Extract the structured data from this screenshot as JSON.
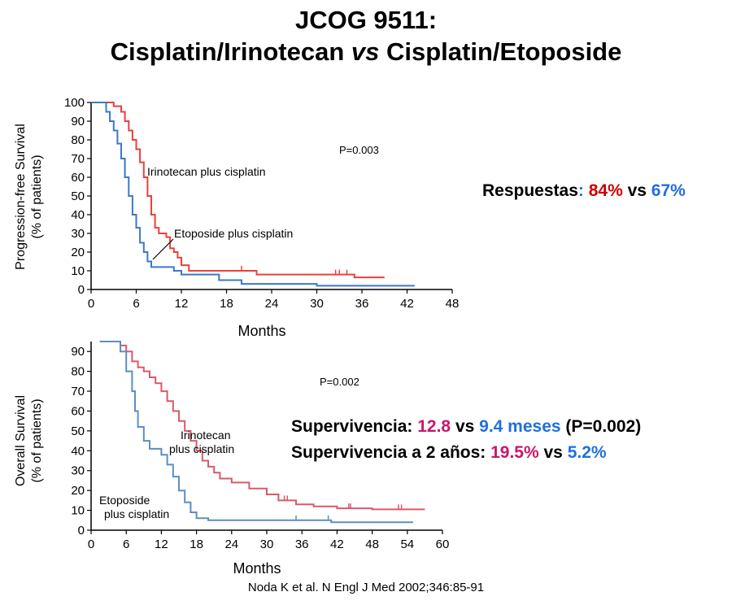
{
  "title": {
    "line1": "JCOG 9511:",
    "line2_a": "Cisplatin/Irinotecan ",
    "line2_vs": "vs",
    "line2_b": " Cisplatin/Etoposide"
  },
  "colors": {
    "irinotecan_pfs": "#e8423a",
    "etoposide_pfs": "#3c78c8",
    "irinotecan_os": "#d9596a",
    "etoposide_os": "#5b8ec4",
    "red_text": "#cc0000",
    "blue_text": "#1f6fe0",
    "magenta_text": "#c8176a"
  },
  "callouts": {
    "respuestas": {
      "label": "Respuestas",
      "colon": ": ",
      "irinotecan": "84%",
      "vs": " vs ",
      "etoposide": "67%"
    },
    "supervivencia": {
      "label": "Supervivencia: ",
      "irinotecan": "12.8",
      "vs": " vs ",
      "etoposide": "9.4 meses",
      "pvalue": " (P=0.002)"
    },
    "supervivencia_2y": {
      "label": "Supervivencia a 2 años: ",
      "irinotecan": "19.5%",
      "vs": " vs ",
      "etoposide": "5.2%"
    }
  },
  "citation": "Noda K et al. N Engl J Med 2002;346:85-91",
  "chart_data": [
    {
      "type": "line",
      "step": true,
      "ylabel": "Progression-free Survival",
      "ylabel2": "(% of patients)",
      "xlabel": "Months",
      "xlim": [
        0,
        48
      ],
      "ylim": [
        0,
        100
      ],
      "xticks": [
        0,
        6,
        12,
        18,
        24,
        30,
        36,
        42,
        48
      ],
      "yticks": [
        0,
        10,
        20,
        30,
        40,
        50,
        60,
        70,
        80,
        90,
        100
      ],
      "pvalue": "P=0.003",
      "series": [
        {
          "name": "Irinotecan plus cisplatin",
          "color_key": "irinotecan_pfs",
          "points": [
            [
              0,
              100
            ],
            [
              2.5,
              100
            ],
            [
              3,
              98
            ],
            [
              4,
              95
            ],
            [
              4.5,
              90
            ],
            [
              5,
              85
            ],
            [
              5.5,
              80
            ],
            [
              6,
              75
            ],
            [
              6.5,
              68
            ],
            [
              7,
              60
            ],
            [
              7.5,
              50
            ],
            [
              8,
              40
            ],
            [
              8.5,
              33
            ],
            [
              9,
              30
            ],
            [
              10,
              28
            ],
            [
              10.5,
              22
            ],
            [
              11,
              20
            ],
            [
              11.5,
              17
            ],
            [
              12,
              13
            ],
            [
              13,
              10
            ],
            [
              16,
              10
            ],
            [
              20,
              10
            ],
            [
              22,
              8
            ],
            [
              30,
              8
            ],
            [
              34,
              8
            ],
            [
              35,
              6.5
            ],
            [
              39,
              6.5
            ]
          ],
          "censor": [
            20,
            32.5,
            33,
            34
          ]
        },
        {
          "name": "Etoposide plus cisplatin",
          "color_key": "etoposide_pfs",
          "points": [
            [
              0,
              100
            ],
            [
              1.5,
              100
            ],
            [
              2,
              95
            ],
            [
              2.5,
              90
            ],
            [
              3,
              85
            ],
            [
              3.5,
              78
            ],
            [
              4,
              70
            ],
            [
              4.5,
              60
            ],
            [
              5,
              50
            ],
            [
              5.5,
              40
            ],
            [
              6,
              33
            ],
            [
              6.5,
              25
            ],
            [
              7,
              20
            ],
            [
              7.5,
              15
            ],
            [
              8,
              12
            ],
            [
              10,
              12
            ],
            [
              11,
              10
            ],
            [
              12,
              8
            ],
            [
              17,
              5
            ],
            [
              20,
              3
            ],
            [
              25,
              3
            ],
            [
              30,
              2
            ],
            [
              43,
              2
            ]
          ],
          "censor": []
        }
      ]
    },
    {
      "type": "line",
      "step": true,
      "ylabel": "Overall Survival",
      "ylabel2": "(% of patients)",
      "xlabel": "Months",
      "xlim": [
        0,
        60
      ],
      "ylim": [
        0,
        95
      ],
      "xticks": [
        0,
        6,
        12,
        18,
        24,
        30,
        36,
        42,
        48,
        54,
        60
      ],
      "yticks": [
        0,
        10,
        20,
        30,
        40,
        50,
        60,
        70,
        80,
        90
      ],
      "pvalue": "P=0.002",
      "series": [
        {
          "name": "Irinotecan plus cisplatin",
          "label_line1": "Irinotecan",
          "label_line2": "plus cisplatin",
          "color_key": "irinotecan_os",
          "points": [
            [
              1.5,
              95
            ],
            [
              4,
              95
            ],
            [
              5,
              93
            ],
            [
              6,
              90
            ],
            [
              7,
              85
            ],
            [
              8,
              82
            ],
            [
              9,
              80
            ],
            [
              10,
              77
            ],
            [
              11,
              74
            ],
            [
              12,
              70
            ],
            [
              13,
              65
            ],
            [
              14,
              60
            ],
            [
              15,
              55
            ],
            [
              16,
              50
            ],
            [
              17,
              45
            ],
            [
              18,
              40
            ],
            [
              19,
              35
            ],
            [
              20,
              32
            ],
            [
              21,
              29
            ],
            [
              22,
              26
            ],
            [
              24,
              24
            ],
            [
              27,
              21
            ],
            [
              30,
              18
            ],
            [
              32,
              15
            ],
            [
              35,
              13
            ],
            [
              38,
              12
            ],
            [
              42,
              11
            ],
            [
              48,
              10.5
            ],
            [
              57,
              10.5
            ]
          ],
          "censor": [
            33,
            33.5,
            44,
            44.3,
            52.5,
            53
          ]
        },
        {
          "name": "Etoposide plus cisplatin",
          "label_line1": "Etoposide",
          "label_line2": "plus cisplatin",
          "color_key": "etoposide_os",
          "points": [
            [
              1.5,
              95
            ],
            [
              4,
              95
            ],
            [
              5,
              90
            ],
            [
              6,
              80
            ],
            [
              7,
              70
            ],
            [
              7.5,
              60
            ],
            [
              8,
              52
            ],
            [
              9,
              45
            ],
            [
              10,
              41
            ],
            [
              12,
              38
            ],
            [
              13,
              33
            ],
            [
              14,
              27
            ],
            [
              15,
              20
            ],
            [
              16,
              14
            ],
            [
              17,
              9
            ],
            [
              18,
              6
            ],
            [
              20,
              5
            ],
            [
              25,
              5
            ],
            [
              35,
              5
            ],
            [
              41,
              4
            ],
            [
              55,
              4
            ]
          ],
          "censor": [
            35,
            40.5
          ]
        }
      ]
    }
  ]
}
